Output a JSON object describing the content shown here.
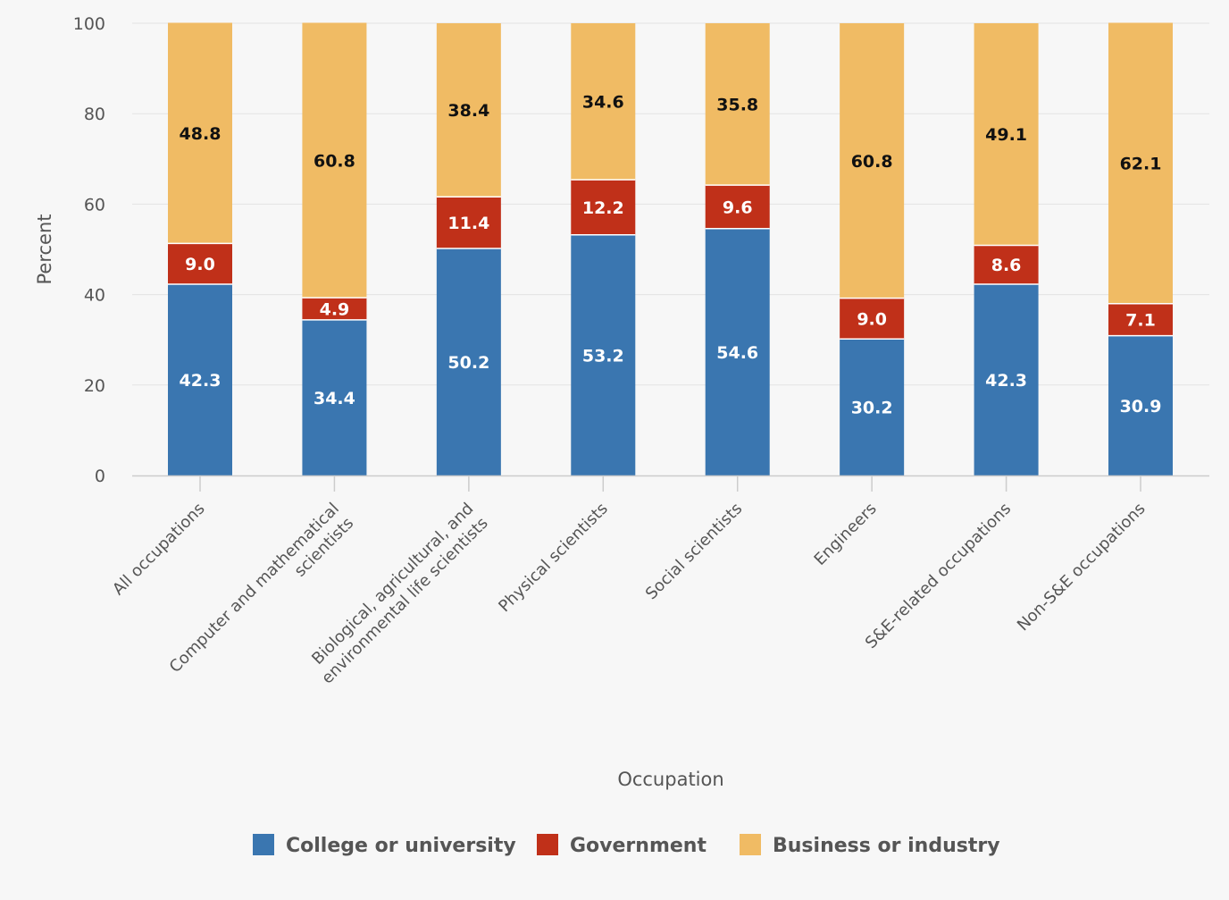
{
  "chart_data": {
    "type": "bar",
    "stacked": true,
    "title": "",
    "xlabel": "Occupation",
    "ylabel": "Percent",
    "ylim": [
      0,
      100
    ],
    "yticks": [
      0,
      20,
      40,
      60,
      80,
      100
    ],
    "grid": true,
    "legend_position": "bottom",
    "categories": [
      [
        "All occupations"
      ],
      [
        "Computer and mathematical",
        "scientists"
      ],
      [
        "Biological, agricultural, and",
        "environmental life scientists"
      ],
      [
        "Physical scientists"
      ],
      [
        "Social scientists"
      ],
      [
        "Engineers"
      ],
      [
        "S&E-related occupations"
      ],
      [
        "Non-S&E occupations"
      ]
    ],
    "series": [
      {
        "name": "College or university",
        "color": "#3a76b0",
        "label_color": "#ffffff",
        "values": [
          42.3,
          34.4,
          50.2,
          53.2,
          54.6,
          30.2,
          42.3,
          30.9
        ]
      },
      {
        "name": "Government",
        "color": "#c03019",
        "label_color": "#ffffff",
        "values": [
          9.0,
          4.9,
          11.4,
          12.2,
          9.6,
          9.0,
          8.6,
          7.1
        ]
      },
      {
        "name": "Business or industry",
        "color": "#f0bb64",
        "label_color": "#111111",
        "values": [
          48.8,
          60.8,
          38.4,
          34.6,
          35.8,
          60.8,
          49.1,
          62.1
        ]
      }
    ]
  }
}
